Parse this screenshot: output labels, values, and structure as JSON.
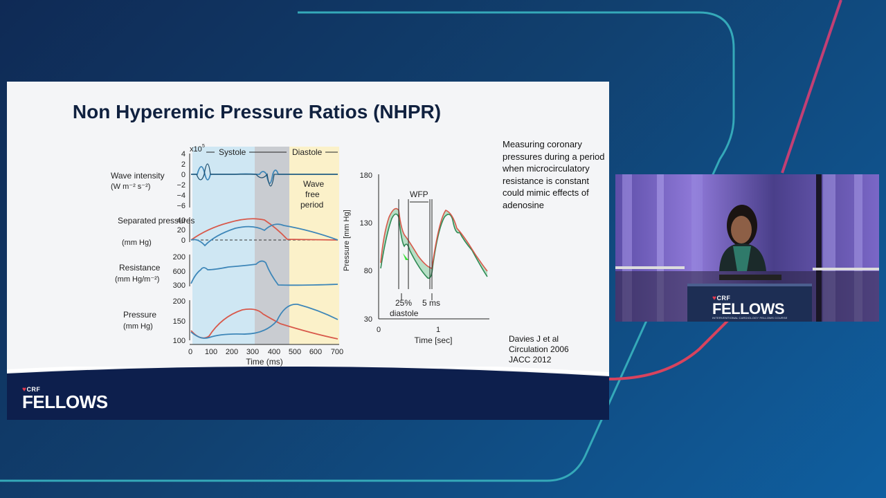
{
  "slide": {
    "title": "Non Hyperemic Pressure Ratios (NHPR)",
    "note": "Measuring coronary pressures during a period when microcirculatory resistance is constant could mimic effects of adenosine",
    "citation": [
      "Davies J et al",
      "Circulation 2006",
      "JACC 2012"
    ],
    "figure_left": {
      "phases": {
        "systole": "Systole",
        "diastole": "Diastole",
        "wfp": "Wave free period"
      },
      "scale": "x10",
      "scale_exp": "5",
      "panels": [
        {
          "label": "Wave intensity",
          "unit": "(W m⁻² s⁻²)",
          "ticks": [
            "4",
            "2",
            "0",
            "−2",
            "−4",
            "−6"
          ]
        },
        {
          "label": "Separated pressures",
          "unit": "(mm Hg)",
          "ticks": [
            "40",
            "20",
            "0"
          ]
        },
        {
          "label": "Resistance",
          "unit": "(mm Hg/m⁻²)",
          "ticks": [
            "200",
            "600",
            "300"
          ]
        },
        {
          "label": "Pressure",
          "unit": "(mm Hg)",
          "ticks": [
            "200",
            "150",
            "100"
          ]
        }
      ],
      "x_ticks": [
        "0",
        "100",
        "200",
        "300",
        "400",
        "500",
        "600",
        "700"
      ],
      "x_label": "Time (ms)"
    },
    "figure_right": {
      "y_label": "Pressure [mm Hg]",
      "y_ticks": [
        "180",
        "130",
        "80",
        "30"
      ],
      "x_ticks": [
        "0",
        "1"
      ],
      "x_label": "Time [sec]",
      "wfp_label": "WFP",
      "pct_label": "25%",
      "diastole_label": "diastole",
      "ms_label": "5 ms"
    }
  },
  "branding": {
    "crf": "CRF",
    "fellows": "FELLOWS",
    "podium_sub": "INTERVENTIONAL CARDIOLOGY FELLOWS COURSE"
  },
  "colors": {
    "slide_title": "#10213f",
    "systole_band": "#cfe7f3",
    "diastole_band": "#fbf1c9",
    "dark_band": "#c9ccd1",
    "red": "#d8584a",
    "blue": "#3d86b8",
    "footer": "#0d1f4d",
    "accent": "#e63a4f"
  }
}
